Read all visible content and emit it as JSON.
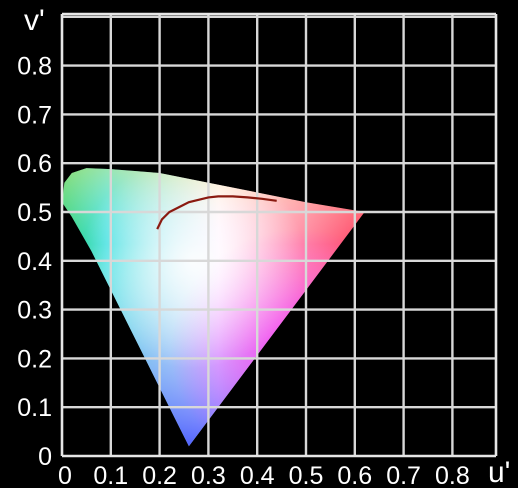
{
  "chart_data": {
    "type": "area",
    "xlabel": "u'",
    "ylabel": "v'",
    "xlim": [
      0,
      0.9
    ],
    "ylim": [
      0,
      0.9
    ],
    "x_ticks": [
      "0",
      "0.1",
      "0.2",
      "0.3",
      "0.4",
      "0.5",
      "0.6",
      "0.7",
      "0.8"
    ],
    "y_ticks": [
      "0",
      "0.1",
      "0.2",
      "0.3",
      "0.4",
      "0.5",
      "0.6",
      "0.7",
      "0.8"
    ],
    "grid": true,
    "spectral_locus": {
      "u": [
        0.26,
        0.23,
        0.17,
        0.11,
        0.06,
        0.02,
        0.0,
        0.005,
        0.02,
        0.05,
        0.1,
        0.2,
        0.3,
        0.4,
        0.5,
        0.62
      ],
      "v": [
        0.02,
        0.08,
        0.2,
        0.32,
        0.42,
        0.49,
        0.52,
        0.56,
        0.58,
        0.59,
        0.588,
        0.58,
        0.56,
        0.54,
        0.52,
        0.5
      ]
    },
    "planckian_locus": {
      "u": [
        0.195,
        0.205,
        0.22,
        0.24,
        0.26,
        0.28,
        0.3,
        0.32,
        0.35,
        0.38,
        0.41,
        0.44
      ],
      "v": [
        0.465,
        0.485,
        0.5,
        0.51,
        0.52,
        0.525,
        0.53,
        0.532,
        0.532,
        0.53,
        0.527,
        0.523
      ]
    },
    "colors": {
      "background": "#000000",
      "grid": "#d8d8d8",
      "curve": "#8a1a10",
      "text": "#ffffff"
    }
  }
}
